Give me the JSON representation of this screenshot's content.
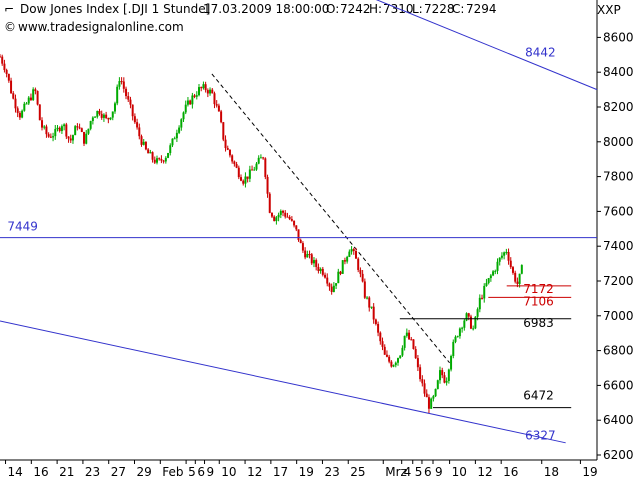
{
  "header": {
    "instrument": "Dow Jones Index [.DJI  1 Stunde]",
    "datetime": "17.03.2009 18:00:00",
    "open_label": "O:",
    "open": "7242",
    "high_label": "H:",
    "high": "7310",
    "low_label": "L:",
    "low": "7228",
    "close_label": "C:",
    "close": "7294",
    "symbol": "XXP",
    "website": "www.tradesignalonline.com",
    "colors": {
      "open": "#00aa00",
      "close": "#00aa00"
    }
  },
  "chart_data": {
    "type": "candlestick",
    "title": "Dow Jones Index [.DJI  1 Stunde]",
    "ylim": [
      6200,
      8700
    ],
    "yticks": [
      6200,
      6400,
      6600,
      6800,
      7000,
      7200,
      7400,
      7600,
      7800,
      8000,
      8200,
      8400,
      8600
    ],
    "xticks": [
      {
        "label": "14",
        "x": 0.3
      },
      {
        "label": "16",
        "x": 1.7
      },
      {
        "label": "21",
        "x": 3.1
      },
      {
        "label": "23",
        "x": 4.5
      },
      {
        "label": "27",
        "x": 5.9
      },
      {
        "label": "29",
        "x": 7.3
      },
      {
        "label": "Feb",
        "x": 8.7
      },
      {
        "label": "5",
        "x": 10.1
      },
      {
        "label": "6",
        "x": 10.6
      },
      {
        "label": "9",
        "x": 11.1
      },
      {
        "label": "10",
        "x": 11.9
      },
      {
        "label": "12",
        "x": 13.3
      },
      {
        "label": "17",
        "x": 14.7
      },
      {
        "label": "19",
        "x": 16.1
      },
      {
        "label": "23",
        "x": 17.5
      },
      {
        "label": "25",
        "x": 18.9
      },
      {
        "label": "Mrz",
        "x": 20.8
      },
      {
        "label": "4",
        "x": 21.8
      },
      {
        "label": "5",
        "x": 22.4
      },
      {
        "label": "6",
        "x": 22.9
      },
      {
        "label": "9",
        "x": 23.5
      },
      {
        "label": "10",
        "x": 24.4
      },
      {
        "label": "12",
        "x": 25.8
      },
      {
        "label": "16",
        "x": 27.2
      },
      {
        "label": "18",
        "x": 29.4
      },
      {
        "label": "19",
        "x": 31.5
      }
    ],
    "xlim": [
      0,
      32.4
    ],
    "close_path": [
      [
        0.0,
        8490
      ],
      [
        0.3,
        8420
      ],
      [
        0.7,
        8250
      ],
      [
        1.1,
        8150
      ],
      [
        1.5,
        8230
      ],
      [
        1.9,
        8300
      ],
      [
        2.2,
        8100
      ],
      [
        2.6,
        8030
      ],
      [
        3.0,
        8050
      ],
      [
        3.4,
        8110
      ],
      [
        3.8,
        8000
      ],
      [
        4.2,
        8100
      ],
      [
        4.6,
        8000
      ],
      [
        5.0,
        8150
      ],
      [
        5.4,
        8180
      ],
      [
        5.8,
        8120
      ],
      [
        6.2,
        8200
      ],
      [
        6.5,
        8380
      ],
      [
        6.8,
        8280
      ],
      [
        7.2,
        8150
      ],
      [
        7.5,
        8050
      ],
      [
        7.9,
        7950
      ],
      [
        8.3,
        7900
      ],
      [
        8.6,
        7880
      ],
      [
        9.0,
        7920
      ],
      [
        9.3,
        7980
      ],
      [
        9.7,
        8100
      ],
      [
        10.0,
        8180
      ],
      [
        10.4,
        8250
      ],
      [
        10.8,
        8300
      ],
      [
        11.1,
        8310
      ],
      [
        11.5,
        8280
      ],
      [
        11.9,
        8150
      ],
      [
        12.2,
        7980
      ],
      [
        12.5,
        7920
      ],
      [
        12.8,
        7850
      ],
      [
        13.2,
        7780
      ],
      [
        13.6,
        7820
      ],
      [
        14.0,
        7880
      ],
      [
        14.3,
        7920
      ],
      [
        14.6,
        7620
      ],
      [
        14.9,
        7560
      ],
      [
        15.3,
        7600
      ],
      [
        15.7,
        7560
      ],
      [
        16.1,
        7480
      ],
      [
        16.4,
        7380
      ],
      [
        16.8,
        7330
      ],
      [
        17.2,
        7280
      ],
      [
        17.6,
        7250
      ],
      [
        18.0,
        7150
      ],
      [
        18.3,
        7220
      ],
      [
        18.7,
        7320
      ],
      [
        19.0,
        7400
      ],
      [
        19.4,
        7300
      ],
      [
        19.8,
        7120
      ],
      [
        20.2,
        7020
      ],
      [
        20.5,
        6900
      ],
      [
        20.9,
        6760
      ],
      [
        21.3,
        6720
      ],
      [
        21.7,
        6780
      ],
      [
        22.0,
        6900
      ],
      [
        22.4,
        6830
      ],
      [
        22.7,
        6680
      ],
      [
        23.0,
        6570
      ],
      [
        23.3,
        6480
      ],
      [
        23.6,
        6540
      ],
      [
        23.9,
        6680
      ],
      [
        24.2,
        6620
      ],
      [
        24.5,
        6800
      ],
      [
        24.9,
        6920
      ],
      [
        25.3,
        7000
      ],
      [
        25.7,
        6920
      ],
      [
        26.0,
        7080
      ],
      [
        26.4,
        7180
      ],
      [
        26.8,
        7260
      ],
      [
        27.2,
        7340
      ],
      [
        27.5,
        7380
      ],
      [
        27.8,
        7250
      ],
      [
        28.1,
        7180
      ],
      [
        28.4,
        7300
      ]
    ],
    "lines": [
      {
        "name": "upper-channel-line",
        "color": "#3333cc",
        "style": "solid",
        "from": [
          18.5,
          8900
        ],
        "to": [
          32.4,
          8300
        ]
      },
      {
        "name": "lower-channel-line",
        "color": "#3333cc",
        "style": "solid",
        "from": [
          0.0,
          6970
        ],
        "to": [
          30.7,
          6270
        ]
      },
      {
        "name": "trendline-dashed",
        "color": "#000000",
        "style": "dashed",
        "from": [
          11.5,
          8390
        ],
        "to": [
          24.4,
          6730
        ]
      }
    ],
    "levels": [
      {
        "value": "8442",
        "color": "#3333cc",
        "line": false,
        "label_x": 28.5
      },
      {
        "value": "7449",
        "color": "#3333cc",
        "line": true,
        "from": 0.0,
        "to": 32.4,
        "label_x": 0.4
      },
      {
        "value": "7172",
        "color": "#cc0000",
        "line": true,
        "from": 27.5,
        "to": 31.0,
        "label_x": 28.4
      },
      {
        "value": "7106",
        "color": "#cc0000",
        "line": true,
        "from": 26.5,
        "to": 31.0,
        "label_x": 28.4
      },
      {
        "value": "6983",
        "color": "#000000",
        "line": true,
        "from": 21.7,
        "to": 31.0,
        "label_x": 28.4
      },
      {
        "value": "6472",
        "color": "#000000",
        "line": true,
        "from": 23.5,
        "to": 31.0,
        "label_x": 28.4
      },
      {
        "value": "6327",
        "color": "#3333cc",
        "line": false,
        "label_x": 28.5
      }
    ],
    "level_label_y": {
      "8442": 8490,
      "7449": 7490,
      "7172": 7130,
      "7106": 7060,
      "6983": 6935,
      "6472": 6520,
      "6327": 6290
    },
    "colors": {
      "up": "#00aa00",
      "down": "#cc0000",
      "axis": "#000000",
      "dashed": "#000000"
    }
  }
}
